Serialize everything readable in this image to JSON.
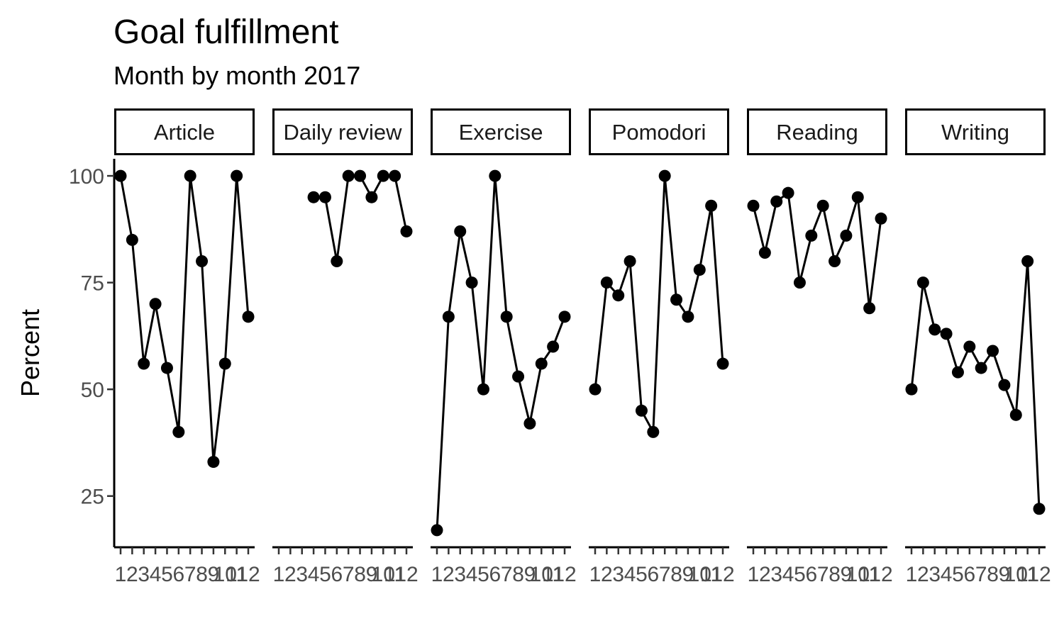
{
  "chart_data": {
    "type": "line",
    "title": "Goal fulfillment",
    "subtitle": "Month by month 2017",
    "xlabel": "",
    "ylabel": "Percent",
    "x": [
      1,
      2,
      3,
      4,
      5,
      6,
      7,
      8,
      9,
      10,
      11,
      12
    ],
    "x_tick_labels": [
      "1",
      "2",
      "3",
      "4",
      "5",
      "6",
      "7",
      "8",
      "9",
      "10",
      "11",
      "12"
    ],
    "ylim": [
      13,
      104
    ],
    "y_ticks": [
      25,
      50,
      75,
      100
    ],
    "y_tick_labels": [
      "25",
      "50",
      "75",
      "100"
    ],
    "grid": false,
    "legend": "none",
    "line_color": "#000000",
    "facets": [
      {
        "name": "Article",
        "values": [
          100,
          85,
          56,
          70,
          55,
          40,
          100,
          80,
          33,
          56,
          100,
          67
        ]
      },
      {
        "name": "Daily review",
        "values": [
          null,
          null,
          null,
          95,
          95,
          80,
          100,
          100,
          95,
          100,
          100,
          87
        ]
      },
      {
        "name": "Exercise",
        "values": [
          17,
          67,
          87,
          75,
          50,
          100,
          67,
          53,
          42,
          56,
          60,
          67
        ]
      },
      {
        "name": "Pomodori",
        "values": [
          50,
          75,
          72,
          80,
          45,
          40,
          100,
          71,
          67,
          78,
          93,
          56
        ]
      },
      {
        "name": "Reading",
        "values": [
          93,
          82,
          94,
          96,
          75,
          86,
          93,
          80,
          86,
          95,
          69,
          90
        ]
      },
      {
        "name": "Writing",
        "values": [
          50,
          75,
          64,
          63,
          54,
          60,
          55,
          59,
          51,
          44,
          80,
          22
        ]
      }
    ]
  }
}
